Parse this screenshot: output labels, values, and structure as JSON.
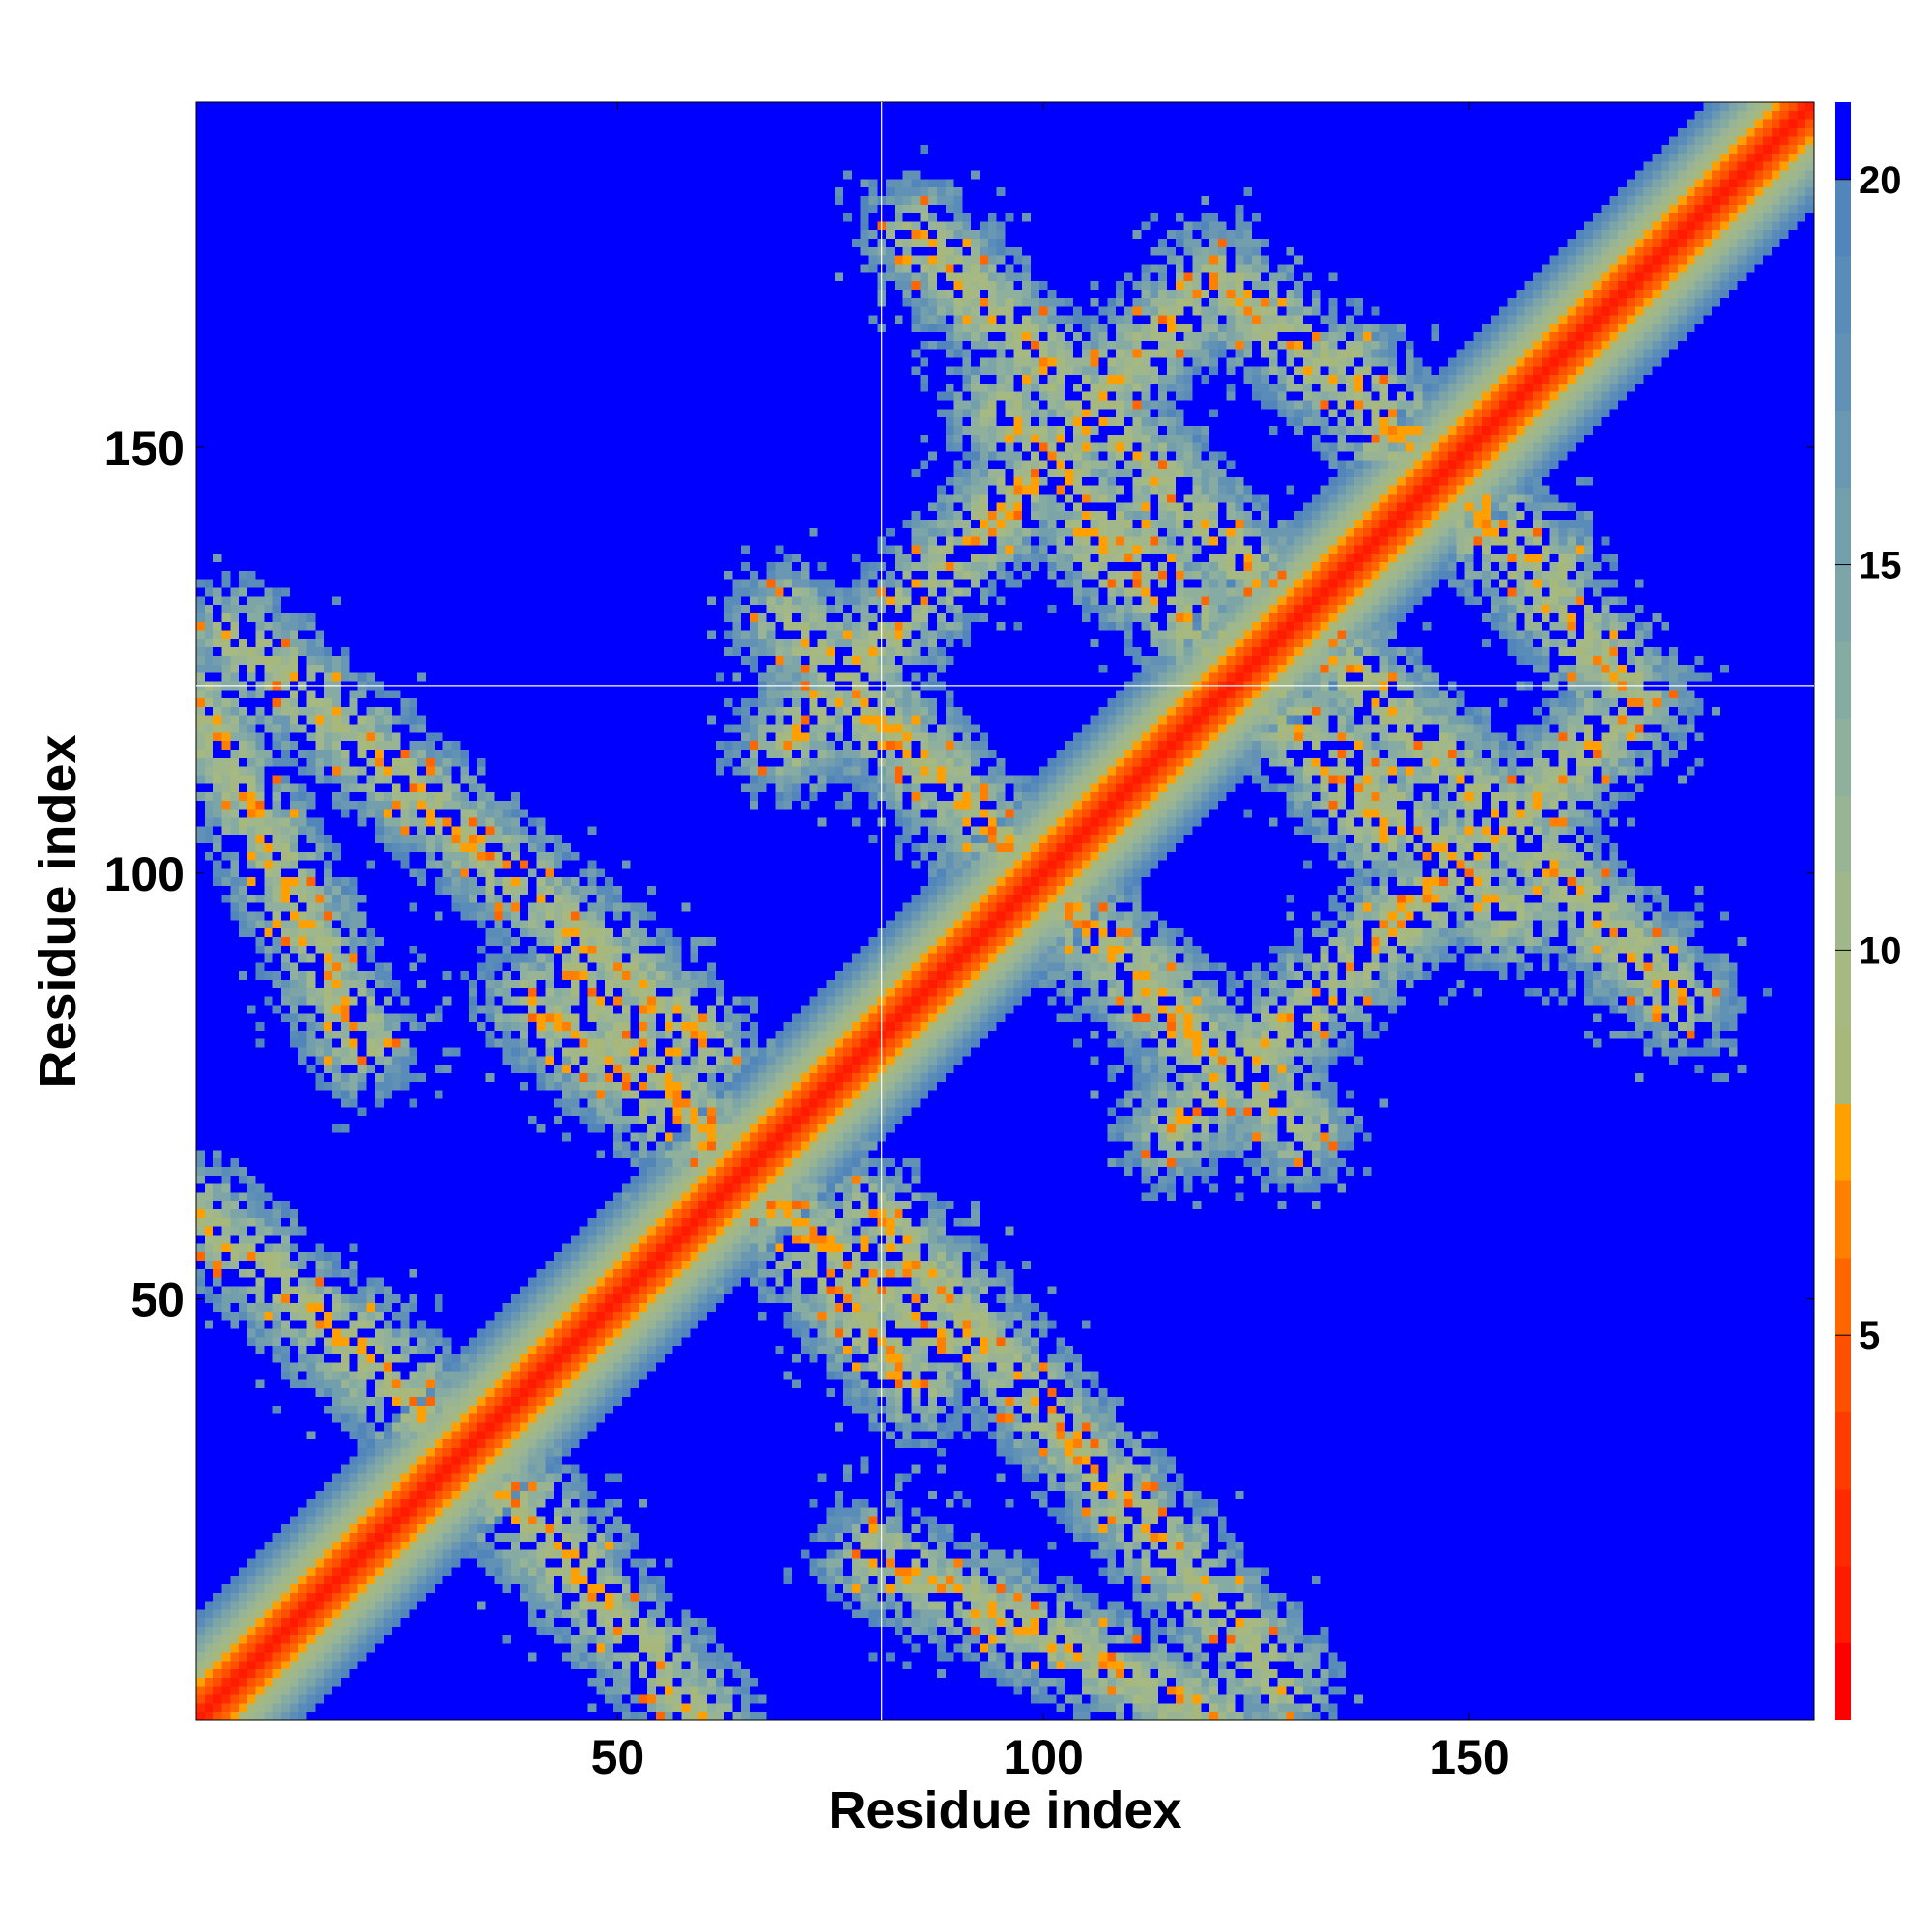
{
  "chart_data": {
    "type": "heatmap",
    "title": "",
    "xlabel": "Residue index",
    "ylabel": "Residue index",
    "n_residues": 190,
    "xlim": [
      1,
      190
    ],
    "ylim": [
      1,
      190
    ],
    "x_ticks": [
      50,
      100,
      150
    ],
    "y_ticks": [
      50,
      100,
      150
    ],
    "colorbar": {
      "range": [
        0,
        21
      ],
      "ticks": [
        5,
        10,
        15,
        20
      ],
      "levels": [
        {
          "from": 0,
          "to": 1,
          "color": "#ff0000"
        },
        {
          "from": 1,
          "to": 2,
          "color": "#ff1a00"
        },
        {
          "from": 2,
          "to": 3,
          "color": "#ff2a00"
        },
        {
          "from": 3,
          "to": 4,
          "color": "#ff3c00"
        },
        {
          "from": 4,
          "to": 5,
          "color": "#ff5000"
        },
        {
          "from": 5,
          "to": 6,
          "color": "#ff6600"
        },
        {
          "from": 6,
          "to": 7,
          "color": "#ff8000"
        },
        {
          "from": 7,
          "to": 8,
          "color": "#ffa000"
        },
        {
          "from": 8,
          "to": 9,
          "color": "#a8b87a"
        },
        {
          "from": 9,
          "to": 10,
          "color": "#a6b982"
        },
        {
          "from": 10,
          "to": 11,
          "color": "#a0b78c"
        },
        {
          "from": 11,
          "to": 12,
          "color": "#98b494"
        },
        {
          "from": 12,
          "to": 13,
          "color": "#8fb09c"
        },
        {
          "from": 13,
          "to": 14,
          "color": "#86aba2"
        },
        {
          "from": 14,
          "to": 15,
          "color": "#7da5a8"
        },
        {
          "from": 15,
          "to": 16,
          "color": "#739fad"
        },
        {
          "from": 16,
          "to": 17,
          "color": "#6a98b2"
        },
        {
          "from": 17,
          "to": 18,
          "color": "#6192b6"
        },
        {
          "from": 18,
          "to": 19,
          "color": "#598cb8"
        },
        {
          "from": 19,
          "to": 20,
          "color": "#5286bb"
        },
        {
          "from": 20,
          "to": 21,
          "color": "#0000ff"
        }
      ]
    },
    "background_value_color": "#0000ff",
    "structure": {
      "diagonal": "residue distance map, minimum along the diagonal (red), rising through orange and green-grey to blue",
      "contact_bands": [
        {
          "from": [
            1,
            60
          ],
          "to": [
            45,
            20
          ]
        },
        {
          "from": [
            5,
            128
          ],
          "to": [
            60,
            80
          ]
        },
        {
          "from": [
            45,
            88
          ],
          "to": [
            85,
            40
          ]
        },
        {
          "from": [
            80,
            118
          ],
          "to": [
            130,
            70
          ]
        },
        {
          "from": [
            70,
            115
          ],
          "to": [
            120,
            170
          ]
        },
        {
          "from": [
            95,
            155
          ],
          "to": [
            140,
            105
          ]
        },
        {
          "from": [
            130,
            130
          ],
          "to": [
            175,
            85
          ]
        },
        {
          "from": [
            120,
            170
          ],
          "to": [
            160,
            135
          ]
        },
        {
          "from": [
            80,
            20
          ],
          "to": [
            120,
            1
          ]
        }
      ],
      "crosshair": {
        "x": 81,
        "y": 122
      }
    }
  }
}
